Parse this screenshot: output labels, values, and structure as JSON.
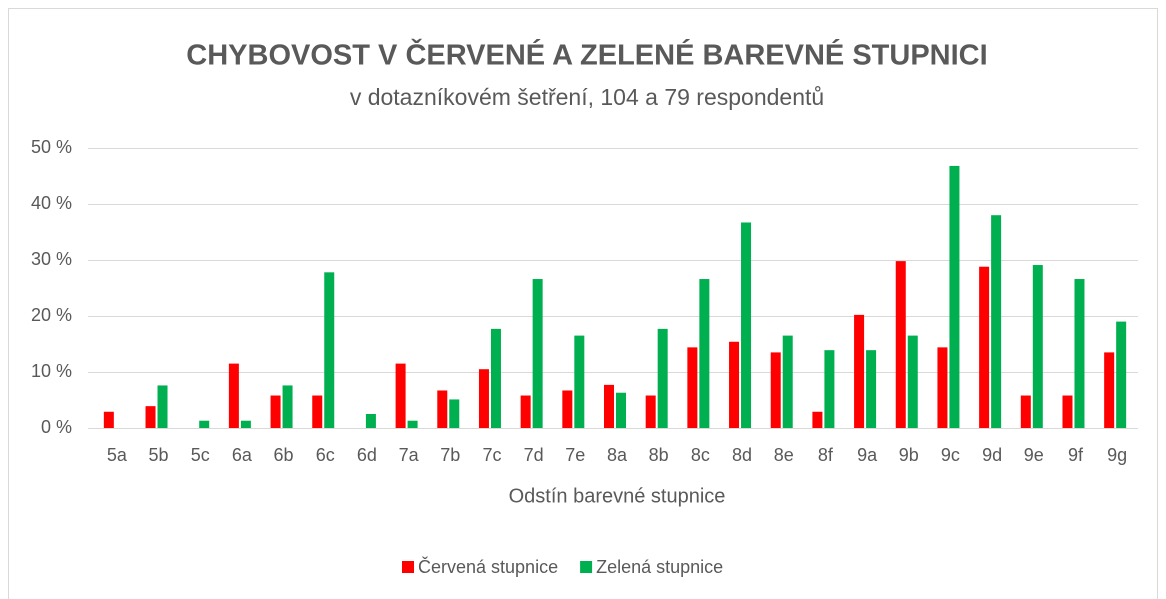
{
  "chart_data": {
    "type": "bar",
    "title": "CHYBOVOST V ČERVENÉ A ZELENÉ BAREVNÉ STUPNICI",
    "subtitle": "v dotazníkovém šetření, 104 a 79 respondentů",
    "x_label": "Odstín barevné stupnice",
    "categories": [
      "5a",
      "5b",
      "5c",
      "6a",
      "6b",
      "6c",
      "6d",
      "7a",
      "7b",
      "7c",
      "7d",
      "7e",
      "8a",
      "8b",
      "8c",
      "8d",
      "8e",
      "8f",
      "9a",
      "9b",
      "9c",
      "9d",
      "9e",
      "9f",
      "9g"
    ],
    "series": [
      {
        "name": "Červená stupnice",
        "color": "#ff0000",
        "values": [
          2.9,
          3.9,
          0,
          11.5,
          5.8,
          5.8,
          0,
          11.5,
          6.7,
          10.5,
          5.8,
          6.7,
          7.7,
          5.8,
          14.4,
          15.4,
          13.5,
          2.9,
          20.2,
          29.8,
          14.4,
          28.8,
          5.8,
          5.8,
          13.5
        ]
      },
      {
        "name": "Zelená stupnice",
        "color": "#00b050",
        "values": [
          0,
          7.6,
          1.3,
          1.3,
          7.6,
          27.8,
          2.5,
          1.3,
          5.1,
          17.7,
          26.6,
          16.5,
          6.3,
          17.7,
          26.6,
          36.7,
          16.5,
          13.9,
          13.9,
          16.5,
          46.8,
          38.0,
          29.1,
          26.6,
          19.0
        ]
      }
    ],
    "ylim": [
      0,
      50
    ],
    "yticks": [
      {
        "value": 0,
        "label": "0 %"
      },
      {
        "value": 10,
        "label": "10 %"
      },
      {
        "value": 20,
        "label": "20 %"
      },
      {
        "value": 30,
        "label": "30 %"
      },
      {
        "value": 40,
        "label": "40 %"
      },
      {
        "value": 50,
        "label": "50 %"
      }
    ],
    "grid": true,
    "legend": "bottom"
  }
}
